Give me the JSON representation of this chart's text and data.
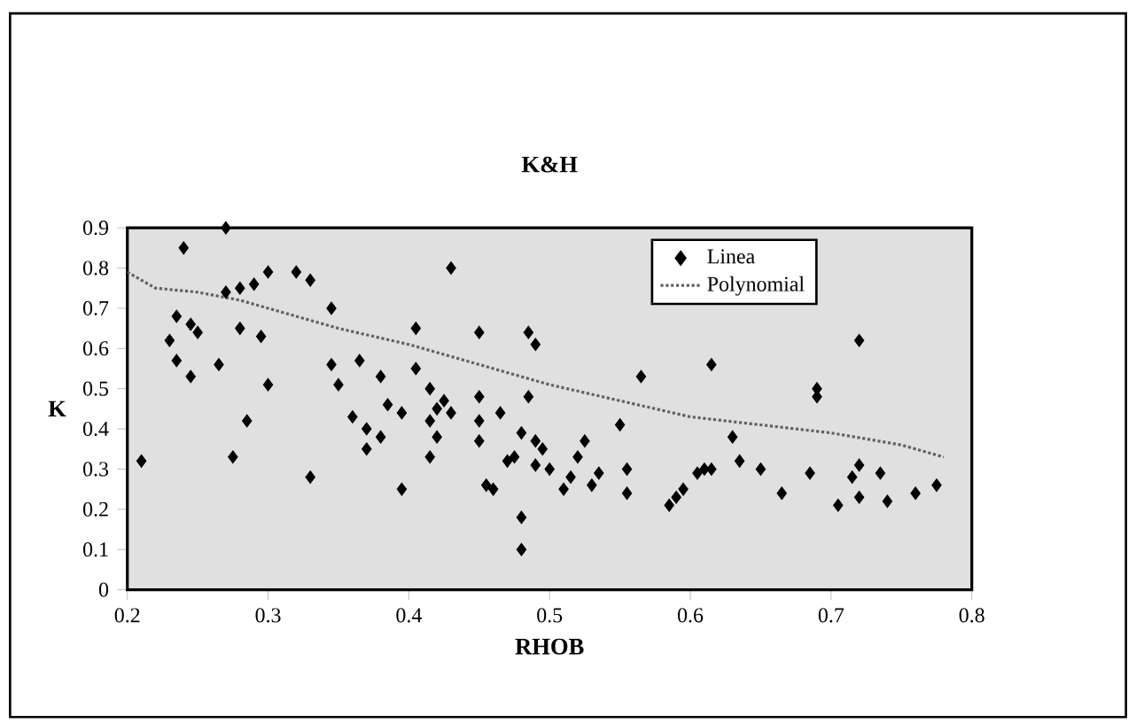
{
  "chart_data": {
    "type": "scatter",
    "title": "K&H",
    "xlabel": "RHOB",
    "ylabel": "K",
    "xlim": [
      0.2,
      0.8
    ],
    "xticks": [
      0.2,
      0.3,
      0.4,
      0.5,
      0.6,
      0.7,
      0.8
    ],
    "ylim": [
      0,
      0.9
    ],
    "yticks": [
      0,
      0.1,
      0.2,
      0.3,
      0.4,
      0.5,
      0.6,
      0.7,
      0.8,
      0.9
    ],
    "legend": "top right",
    "grid": false,
    "marker": "diamond",
    "series": [
      {
        "name": "Linea",
        "color": "#000000",
        "x": [
          0.21,
          0.24,
          0.27,
          0.23,
          0.235,
          0.245,
          0.235,
          0.245,
          0.25,
          0.265,
          0.275,
          0.285,
          0.28,
          0.27,
          0.28,
          0.29,
          0.295,
          0.3,
          0.3,
          0.32,
          0.33,
          0.33,
          0.345,
          0.345,
          0.35,
          0.365,
          0.36,
          0.37,
          0.37,
          0.38,
          0.38,
          0.385,
          0.395,
          0.395,
          0.405,
          0.405,
          0.415,
          0.42,
          0.415,
          0.42,
          0.415,
          0.425,
          0.43,
          0.43,
          0.45,
          0.45,
          0.45,
          0.45,
          0.455,
          0.46,
          0.465,
          0.47,
          0.475,
          0.48,
          0.48,
          0.485,
          0.49,
          0.485,
          0.48,
          0.49,
          0.495,
          0.49,
          0.5,
          0.51,
          0.515,
          0.52,
          0.525,
          0.53,
          0.535,
          0.55,
          0.555,
          0.555,
          0.565,
          0.585,
          0.59,
          0.595,
          0.605,
          0.61,
          0.615,
          0.615,
          0.63,
          0.635,
          0.65,
          0.665,
          0.685,
          0.69,
          0.69,
          0.705,
          0.715,
          0.72,
          0.72,
          0.72,
          0.735,
          0.74,
          0.76,
          0.775
        ],
        "values": [
          0.32,
          0.85,
          0.9,
          0.62,
          0.57,
          0.53,
          0.68,
          0.66,
          0.64,
          0.56,
          0.33,
          0.42,
          0.65,
          0.74,
          0.75,
          0.76,
          0.63,
          0.51,
          0.79,
          0.79,
          0.77,
          0.28,
          0.7,
          0.56,
          0.51,
          0.57,
          0.43,
          0.4,
          0.35,
          0.38,
          0.53,
          0.46,
          0.44,
          0.25,
          0.65,
          0.55,
          0.5,
          0.45,
          0.42,
          0.38,
          0.33,
          0.47,
          0.44,
          0.8,
          0.64,
          0.48,
          0.42,
          0.37,
          0.26,
          0.25,
          0.44,
          0.32,
          0.33,
          0.18,
          0.1,
          0.64,
          0.61,
          0.48,
          0.39,
          0.37,
          0.35,
          0.31,
          0.3,
          0.25,
          0.28,
          0.33,
          0.37,
          0.26,
          0.29,
          0.41,
          0.3,
          0.24,
          0.53,
          0.21,
          0.23,
          0.25,
          0.29,
          0.3,
          0.56,
          0.3,
          0.38,
          0.32,
          0.3,
          0.24,
          0.29,
          0.5,
          0.48,
          0.21,
          0.28,
          0.23,
          0.62,
          0.31,
          0.29,
          0.22,
          0.24,
          0.26
        ]
      },
      {
        "name": "Polynomial",
        "type": "line",
        "color": "#606060",
        "line_style": "dotted",
        "marker": "none",
        "x": [
          0.2,
          0.22,
          0.25,
          0.28,
          0.31,
          0.35,
          0.4,
          0.45,
          0.5,
          0.55,
          0.6,
          0.65,
          0.7,
          0.75,
          0.78
        ],
        "values": [
          0.79,
          0.75,
          0.74,
          0.72,
          0.69,
          0.65,
          0.61,
          0.56,
          0.51,
          0.47,
          0.43,
          0.41,
          0.39,
          0.36,
          0.33
        ]
      }
    ]
  }
}
